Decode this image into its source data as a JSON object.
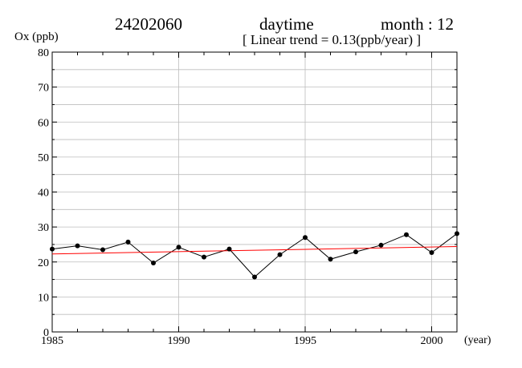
{
  "header": {
    "station": "24202060",
    "period": "daytime",
    "month": "month : 12",
    "trend": "[ Linear trend = 0.13(ppb/year) ]"
  },
  "chart_data": {
    "type": "line",
    "ylabel": "Ox (ppb)",
    "xlabel": "(year)",
    "xlim": [
      1985,
      2001
    ],
    "ylim": [
      0,
      80
    ],
    "x_ticks": [
      1985,
      1990,
      1995,
      2000
    ],
    "y_ticks": [
      0,
      10,
      20,
      30,
      40,
      50,
      60,
      70,
      80
    ],
    "grid": true,
    "series": [
      {
        "x": [
          1985,
          1986,
          1987,
          1988,
          1989,
          1990,
          1991,
          1992,
          1993,
          1994,
          1995,
          1996,
          1997,
          1998,
          1999,
          2000,
          2001
        ],
        "values": [
          23.7,
          24.6,
          23.5,
          25.7,
          19.7,
          24.2,
          21.4,
          23.7,
          15.7,
          22.1,
          27.0,
          20.8,
          22.9,
          24.8,
          27.8,
          22.7,
          28.1
        ],
        "color": "#000000"
      }
    ],
    "trend_line": {
      "slope_per_year": 0.13,
      "x": [
        1985,
        2001
      ],
      "values": [
        22.3,
        24.4
      ],
      "color": "#ff0000"
    }
  }
}
